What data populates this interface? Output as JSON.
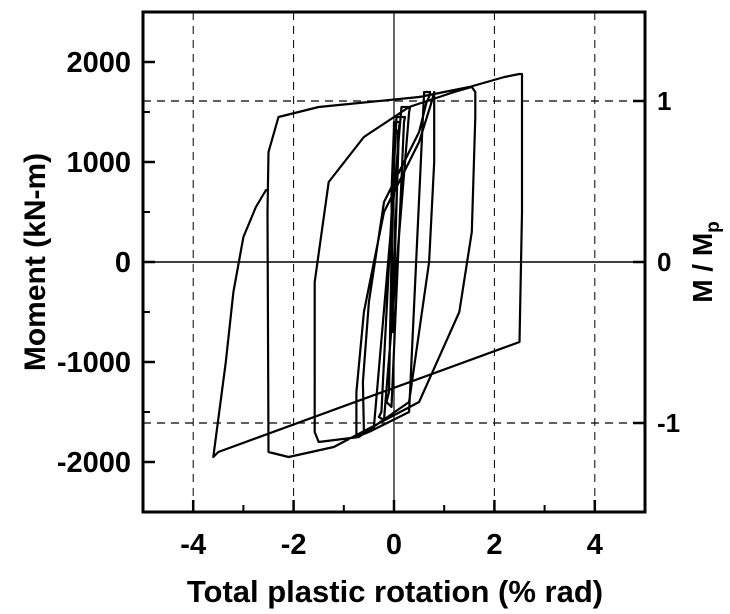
{
  "chart_data": {
    "type": "line",
    "xlabel": "Total plastic rotation (% rad)",
    "ylabel": "Moment (kN-m)",
    "y2label_main": "M / M",
    "y2label_sub": "p",
    "xlim": [
      -5,
      5
    ],
    "ylim": [
      -2500,
      2500
    ],
    "x_ticks": [
      -4,
      -2,
      0,
      2,
      4
    ],
    "x_tick_labels": [
      "-4",
      "-2",
      "0",
      "2",
      "4"
    ],
    "y_ticks": [
      -2000,
      -1000,
      0,
      1000,
      2000
    ],
    "y_tick_labels": [
      "-2000",
      "-1000",
      "0",
      "1000",
      "2000"
    ],
    "y2_ticks": [
      -1610,
      0,
      1610
    ],
    "y2_tick_labels": [
      "-1",
      "0",
      "1"
    ],
    "mp_value": 1610,
    "grid": "dashed",
    "series": [
      {
        "x": [
          -0.05,
          0.05,
          0.08,
          0.0,
          -0.05,
          -0.03,
          0.1,
          0.12,
          0.0,
          -0.1,
          -0.15,
          -0.05,
          0.2,
          0.22,
          0.05,
          -0.25,
          -0.3,
          -0.2,
          0.3,
          0.32,
          0.15,
          -0.4,
          -0.6,
          -0.62,
          -0.5,
          -0.2,
          0.5,
          0.65,
          0.7,
          0.72,
          0.6,
          0.3,
          -0.5,
          -0.75,
          -0.75,
          -0.6,
          -0.2,
          0.5,
          0.75,
          0.8,
          0.8,
          0.7,
          0.3,
          -0.7,
          -1.5,
          -1.58,
          -1.58,
          -1.3,
          -0.6,
          0.3,
          1.2,
          1.55,
          1.62,
          1.62,
          1.55,
          1.3,
          0.5,
          -1.2,
          -2.1,
          -2.5,
          -2.52,
          -2.5,
          -2.3,
          -1.5,
          -0.5,
          0.5,
          1.5,
          2.2,
          2.5,
          2.55,
          2.55,
          2.5,
          -3.5,
          -3.6,
          -3.35,
          -3.2,
          -3.0,
          -2.75,
          -2.55
        ],
        "y": [
          -600,
          600,
          1300,
          1350,
          700,
          -700,
          1350,
          1400,
          1400,
          -1300,
          -1400,
          -1450,
          1400,
          1450,
          1450,
          -1500,
          -1550,
          -1580,
          1500,
          1550,
          1550,
          -1650,
          -1700,
          -1200,
          -400,
          600,
          1300,
          1600,
          1650,
          1700,
          1700,
          -1500,
          -1700,
          -1750,
          -1300,
          -500,
          500,
          1200,
          1600,
          1700,
          1000,
          0,
          -1400,
          -1750,
          -1800,
          -1700,
          -200,
          800,
          1250,
          1550,
          1700,
          1750,
          1700,
          1450,
          300,
          -500,
          -1400,
          -1850,
          -1950,
          -1900,
          500,
          1100,
          1450,
          1550,
          1600,
          1650,
          1750,
          1850,
          1880,
          1880,
          500,
          -800,
          -1900,
          -1950,
          -1000,
          -300,
          250,
          550,
          720
        ],
        "name": ""
      }
    ]
  }
}
